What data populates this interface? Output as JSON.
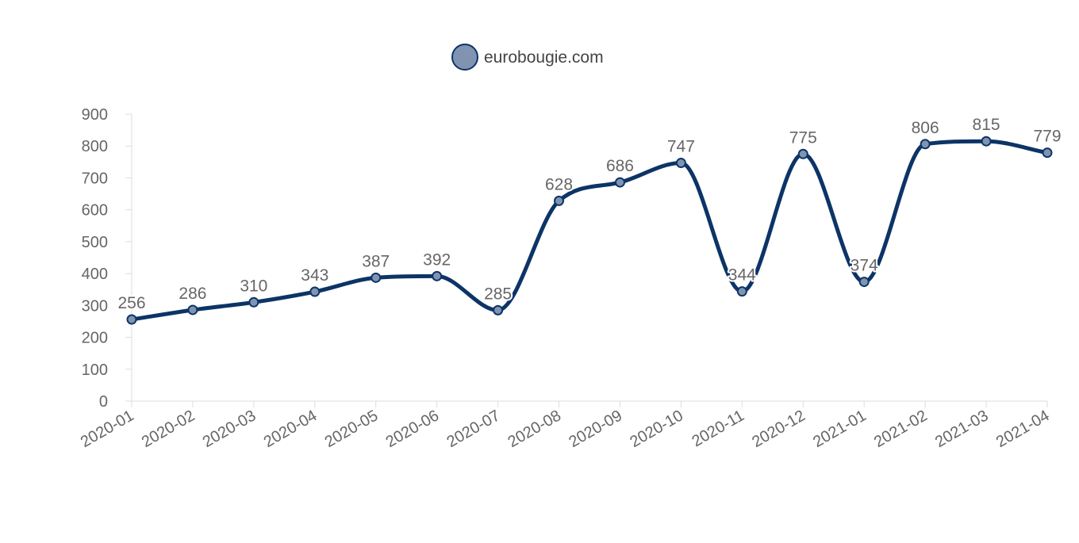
{
  "chart_data": {
    "type": "line",
    "categories": [
      "2020-01",
      "2020-02",
      "2020-03",
      "2020-04",
      "2020-05",
      "2020-06",
      "2020-07",
      "2020-08",
      "2020-09",
      "2020-10",
      "2020-11",
      "2020-12",
      "2021-01",
      "2021-02",
      "2021-03",
      "2021-04"
    ],
    "series": [
      {
        "name": "eurobougie.com",
        "values": [
          256,
          286,
          310,
          343,
          387,
          392,
          285,
          628,
          686,
          747,
          344,
          775,
          374,
          806,
          815,
          779
        ],
        "line_color": "#0c3466",
        "point_color": "#8094b2"
      }
    ],
    "yticks": [
      0,
      100,
      200,
      300,
      400,
      500,
      600,
      700,
      800,
      900
    ],
    "ylim": [
      0,
      900
    ],
    "title": "",
    "xlabel": "",
    "ylabel": "",
    "legend_position": "top-center",
    "grid": false,
    "smooth": true
  }
}
